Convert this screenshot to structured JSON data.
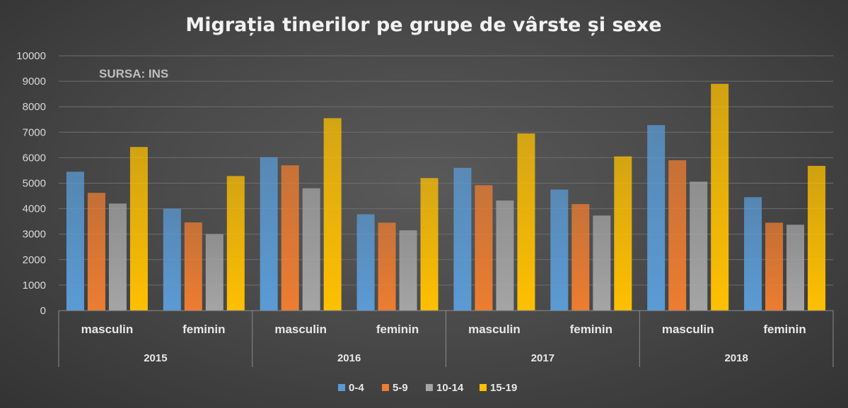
{
  "chart_data": {
    "type": "bar",
    "title": "Migrația tinerilor pe grupe de vârste și sexe",
    "source_note": "SURSA: INS",
    "groups": [
      {
        "label": "2015",
        "categories": [
          "masculin",
          "feminin"
        ]
      },
      {
        "label": "2016",
        "categories": [
          "masculin",
          "feminin"
        ]
      },
      {
        "label": "2017",
        "categories": [
          "masculin",
          "feminin"
        ]
      },
      {
        "label": "2018",
        "categories": [
          "masculin",
          "feminin"
        ]
      }
    ],
    "series": [
      {
        "name": "0-4",
        "color": "#5b9bd5",
        "values": [
          5450,
          4000,
          6020,
          3780,
          5600,
          4750,
          7280,
          4450
        ]
      },
      {
        "name": "5-9",
        "color": "#ed7d31",
        "values": [
          4620,
          3460,
          5700,
          3450,
          4920,
          4180,
          5900,
          3450
        ]
      },
      {
        "name": "10-14",
        "color": "#a5a5a5",
        "values": [
          4200,
          3000,
          4800,
          3150,
          4320,
          3730,
          5060,
          3370
        ]
      },
      {
        "name": "15-19",
        "color": "#ffc000",
        "values": [
          6420,
          5280,
          7550,
          5200,
          6950,
          6050,
          8900,
          5680
        ]
      }
    ],
    "ylim": [
      0,
      10000
    ],
    "yticks": [
      "0",
      "1000",
      "2000",
      "3000",
      "4000",
      "5000",
      "6000",
      "7000",
      "8000",
      "9000",
      "10000"
    ],
    "grid": true,
    "legend_position": "bottom"
  }
}
